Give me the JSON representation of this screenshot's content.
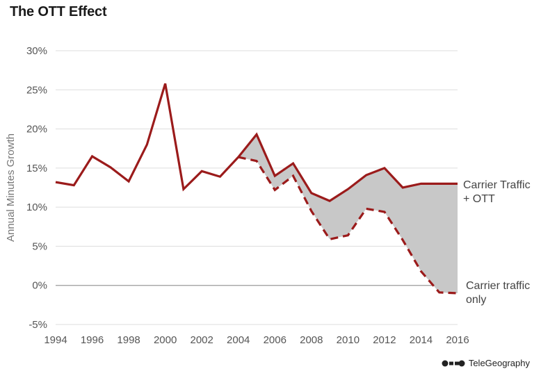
{
  "title": "The OTT Effect",
  "credit": "TeleGeography",
  "chart_data": {
    "type": "line",
    "ylabel": "Annual Minutes Growth",
    "ylim": [
      -5,
      30
    ],
    "xlim": [
      1994,
      2016
    ],
    "yticks": [
      -5,
      0,
      5,
      10,
      15,
      20,
      25,
      30
    ],
    "ytick_labels": [
      "-5%",
      "0%",
      "5%",
      "10%",
      "15%",
      "20%",
      "25%",
      "30%"
    ],
    "xticks": [
      1994,
      1996,
      1998,
      2000,
      2002,
      2004,
      2006,
      2008,
      2010,
      2012,
      2014,
      2016
    ],
    "xtick_labels": [
      "1994",
      "1996",
      "1998",
      "2000",
      "2002",
      "2004",
      "2006",
      "2008",
      "2010",
      "2012",
      "2014",
      "2016"
    ],
    "grid": true,
    "series": [
      {
        "name": "Carrier Traffic + OTT",
        "label_lines": [
          "Carrier Traffic",
          "+ OTT"
        ],
        "style": "solid",
        "color": "#9b1b1b",
        "x": [
          1994,
          1995,
          1996,
          1997,
          1998,
          1999,
          2000,
          2001,
          2002,
          2003,
          2004,
          2005,
          2006,
          2007,
          2008,
          2009,
          2010,
          2011,
          2012,
          2013,
          2014,
          2015,
          2016
        ],
        "y": [
          13.2,
          12.8,
          16.5,
          15.1,
          13.3,
          18.0,
          25.8,
          12.3,
          14.6,
          13.9,
          16.4,
          19.3,
          14.0,
          15.6,
          11.8,
          10.8,
          12.3,
          14.1,
          15.0,
          12.5,
          13.0,
          13.0,
          13.0
        ]
      },
      {
        "name": "Carrier traffic only",
        "label_lines": [
          "Carrier traffic",
          "only"
        ],
        "style": "dashed",
        "color": "#9b1b1b",
        "x": [
          2004,
          2005,
          2006,
          2007,
          2008,
          2009,
          2010,
          2011,
          2012,
          2013,
          2014,
          2015,
          2016
        ],
        "y": [
          16.4,
          15.9,
          12.2,
          14.0,
          9.5,
          5.9,
          6.4,
          9.8,
          9.4,
          5.8,
          1.8,
          -0.9,
          -1.0
        ]
      }
    ],
    "fill_between": {
      "color": "#c8c8c8",
      "x_from": 2004,
      "x_to": 2016
    }
  }
}
